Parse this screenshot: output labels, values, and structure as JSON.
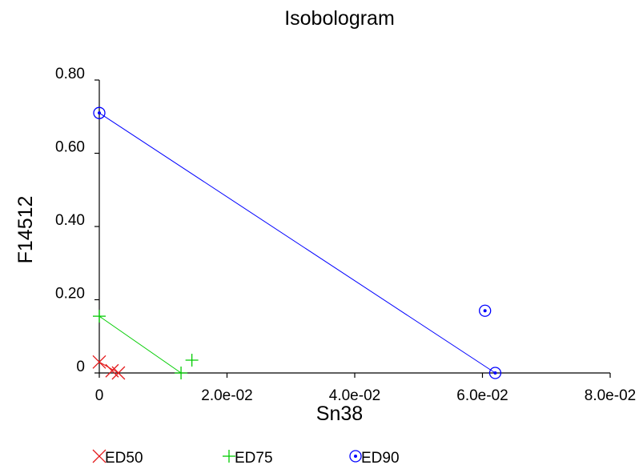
{
  "chart_data": {
    "type": "scatter",
    "title": "Isobologram",
    "xlabel": "Sn38",
    "ylabel": "F14512",
    "xlim": [
      0,
      0.08
    ],
    "ylim": [
      0,
      0.8
    ],
    "x_ticks": [
      "0",
      "2.0e-02",
      "4.0e-02",
      "6.0e-02",
      "8.0e-02"
    ],
    "y_ticks": [
      "0",
      "0.20",
      "0.40",
      "0.60",
      "0.80"
    ],
    "grid": false,
    "legend_position": "bottom",
    "series": [
      {
        "name": "ED50",
        "marker": "x",
        "color": "#e41a1c",
        "line": [
          {
            "x": 0,
            "y": 0.03
          },
          {
            "x": 0.003,
            "y": 0.0
          }
        ],
        "points": [
          {
            "x": 0,
            "y": 0.03
          },
          {
            "x": 0.003,
            "y": 0.0
          },
          {
            "x": 0.002,
            "y": 0.006
          }
        ]
      },
      {
        "name": "ED75",
        "marker": "plus",
        "color": "#00cc00",
        "line": [
          {
            "x": 0,
            "y": 0.155
          },
          {
            "x": 0.0128,
            "y": 0.0
          }
        ],
        "points": [
          {
            "x": 0,
            "y": 0.155
          },
          {
            "x": 0.0128,
            "y": 0.0
          },
          {
            "x": 0.0145,
            "y": 0.035
          }
        ]
      },
      {
        "name": "ED90",
        "marker": "circled-dot",
        "color": "#0000ff",
        "line": [
          {
            "x": 0,
            "y": 0.71
          },
          {
            "x": 0.062,
            "y": 0.0
          }
        ],
        "points": [
          {
            "x": 0,
            "y": 0.71
          },
          {
            "x": 0.062,
            "y": 0.0
          },
          {
            "x": 0.0604,
            "y": 0.17
          }
        ]
      }
    ]
  }
}
